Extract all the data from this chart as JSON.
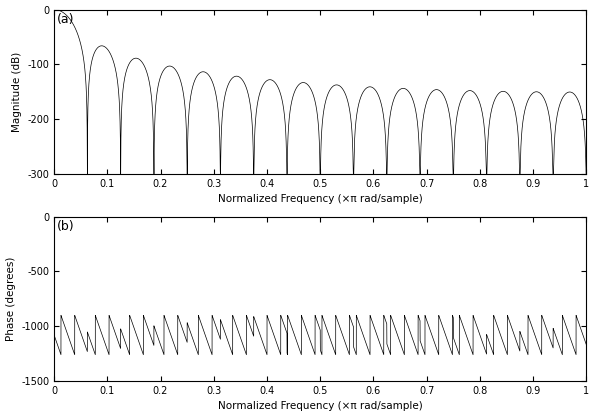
{
  "title_a": "(a)",
  "title_b": "(b)",
  "xlabel": "Normalized Frequency (×π rad/sample)",
  "ylabel_a": "Magnitude (dB)",
  "ylabel_b": "Phase (degrees)",
  "xlim": [
    0,
    1
  ],
  "ylim_a": [
    -300,
    0
  ],
  "ylim_b": [
    -1500,
    0
  ],
  "yticks_a": [
    0,
    -100,
    -200,
    -300
  ],
  "yticks_b": [
    0,
    -500,
    -1000,
    -1500
  ],
  "xticks": [
    0,
    0.1,
    0.2,
    0.3,
    0.4,
    0.5,
    0.6,
    0.7,
    0.8,
    0.9,
    1.0
  ],
  "line_color": "#000000",
  "background_color": "#ffffff",
  "num_samples": 16384,
  "figsize": [
    5.95,
    4.17
  ],
  "dpi": 100,
  "R": 32,
  "M": 1,
  "stages": 5
}
